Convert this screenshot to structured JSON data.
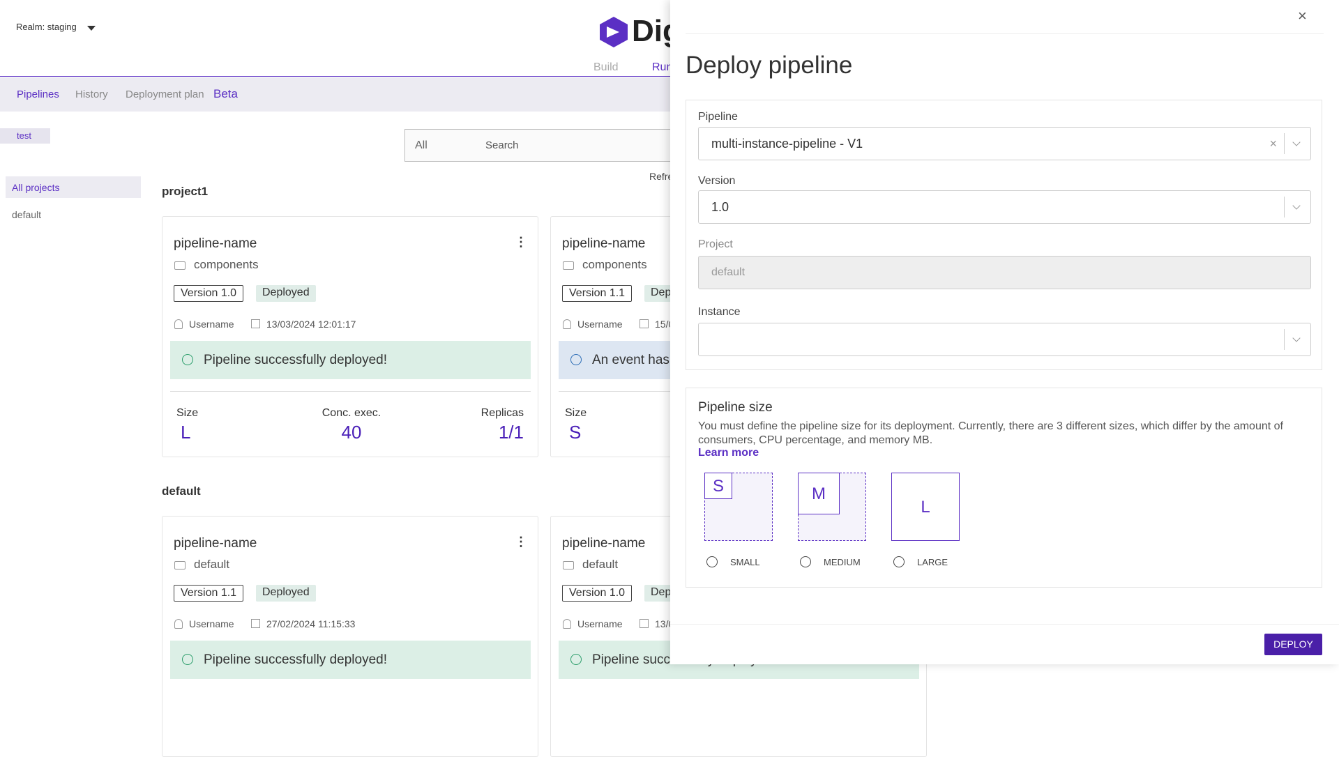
{
  "header": {
    "realm": "Realm: staging",
    "logo": "Dig",
    "tabs": [
      "Build",
      "Run"
    ]
  },
  "nav": {
    "items": [
      "Pipelines",
      "History",
      "Deployment plan"
    ],
    "badge": "Beta"
  },
  "sidebar": {
    "filter": "test",
    "items": [
      "All projects",
      "default"
    ]
  },
  "toolbar": {
    "filter": "All",
    "search": "Search",
    "refresh": "Refresh"
  },
  "groups": [
    {
      "title": "project1",
      "cards": [
        {
          "name": "pipeline-name",
          "folder": "components",
          "version": "Version 1.0",
          "status": "Deployed",
          "user": "Username",
          "date": "13/03/2024 12:01:17",
          "message": "Pipeline successfully deployed!",
          "tone": "success",
          "stats": [
            {
              "label": "Size",
              "value": "L"
            },
            {
              "label": "Conc. exec.",
              "value": "40"
            },
            {
              "label": "Replicas",
              "value": "1/1"
            }
          ]
        },
        {
          "name": "pipeline-name",
          "folder": "components",
          "version": "Version 1.1",
          "status": "Deployed",
          "user": "Username",
          "date": "15/0",
          "message": "An event has o",
          "tone": "info",
          "stats": [
            {
              "label": "Size",
              "value": "S"
            }
          ]
        }
      ]
    },
    {
      "title": "default",
      "cards": [
        {
          "name": "pipeline-name",
          "folder": "default",
          "version": "Version 1.1",
          "status": "Deployed",
          "user": "Username",
          "date": "27/02/2024 11:15:33",
          "message": "Pipeline successfully deployed!",
          "tone": "success"
        },
        {
          "name": "pipeline-name",
          "folder": "default",
          "version": "Version 1.0",
          "status": "Deployed",
          "user": "Username",
          "date": "13/0",
          "message": "Pipeline successfully deployed!",
          "tone": "success"
        }
      ]
    }
  ],
  "drawer": {
    "title": "Deploy pipeline",
    "fields": [
      {
        "label": "Pipeline",
        "value": "multi-instance-pipeline - V1"
      },
      {
        "label": "Version",
        "value": "1.0"
      },
      {
        "label": "Project",
        "value": "default"
      },
      {
        "label": "Instance",
        "value": ""
      }
    ],
    "size": {
      "title": "Pipeline size",
      "description": "You must define the pipeline size for its deployment. Currently, there are 3 different sizes, which differ by the amount of consumers, CPU percentage, and memory MB.",
      "link": "Learn more",
      "options": [
        {
          "letter": "S",
          "label": "SMALL"
        },
        {
          "letter": "M",
          "label": "MEDIUM"
        },
        {
          "letter": "L",
          "label": "LARGE"
        }
      ]
    },
    "button": "DEPLOY"
  }
}
